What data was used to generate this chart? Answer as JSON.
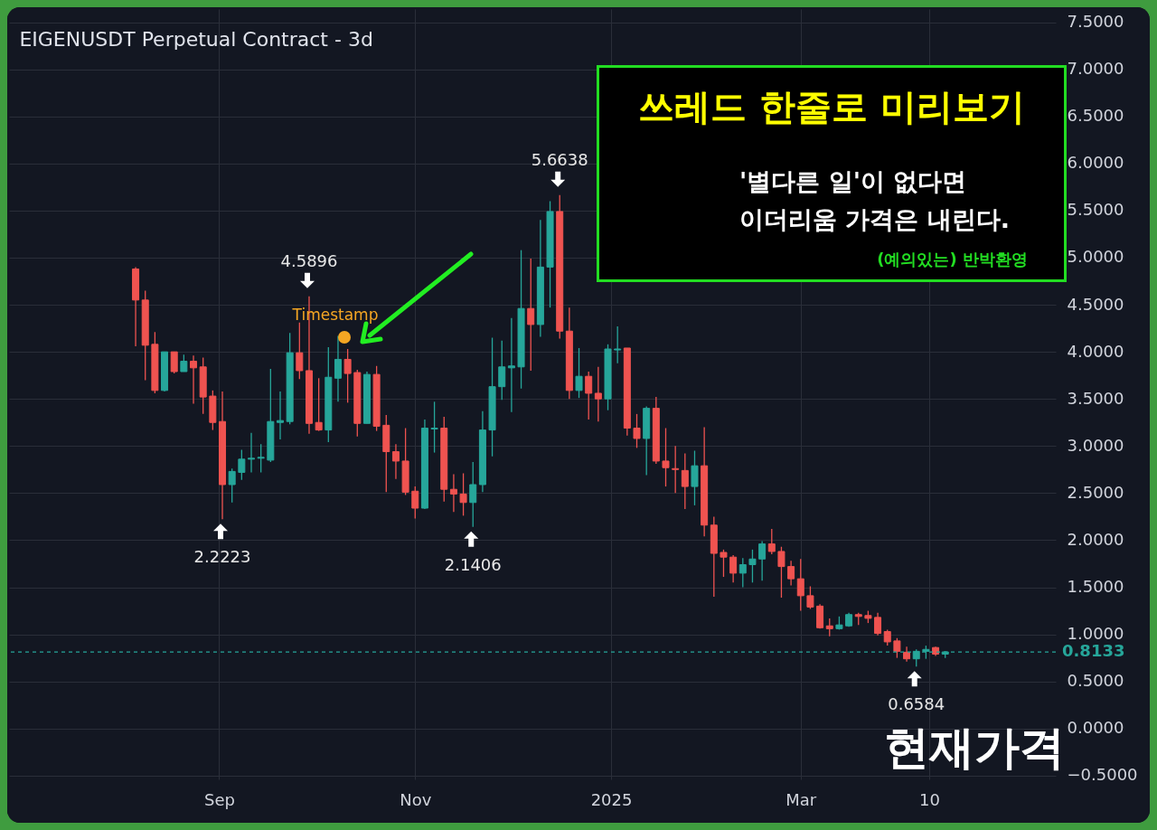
{
  "chart_data": {
    "type": "candlestick",
    "title": "EIGENUSDT Perpetual Contract - 3d",
    "x": [
      "2024-08-06",
      "2024-08-09",
      "2024-08-12",
      "2024-08-15",
      "2024-08-18",
      "2024-08-21",
      "2024-08-24",
      "2024-08-27",
      "2024-08-30",
      "2024-09-02",
      "2024-09-05",
      "2024-09-08",
      "2024-09-11",
      "2024-09-14",
      "2024-09-17",
      "2024-09-20",
      "2024-09-23",
      "2024-09-26",
      "2024-09-29",
      "2024-10-02",
      "2024-10-05",
      "2024-10-08",
      "2024-10-11",
      "2024-10-14",
      "2024-10-17",
      "2024-10-20",
      "2024-10-23",
      "2024-10-26",
      "2024-10-29",
      "2024-11-01",
      "2024-11-04",
      "2024-11-07",
      "2024-11-10",
      "2024-11-13",
      "2024-11-16",
      "2024-11-19",
      "2024-11-22",
      "2024-11-25",
      "2024-11-28",
      "2024-12-01",
      "2024-12-04",
      "2024-12-07",
      "2024-12-10",
      "2024-12-13",
      "2024-12-16",
      "2024-12-19",
      "2024-12-22",
      "2024-12-25",
      "2024-12-28",
      "2024-12-31",
      "2025-01-03",
      "2025-01-06",
      "2025-01-09",
      "2025-01-12",
      "2025-01-15",
      "2025-01-18",
      "2025-01-21",
      "2025-01-24",
      "2025-01-27",
      "2025-01-30",
      "2025-02-02",
      "2025-02-05",
      "2025-02-08",
      "2025-02-11",
      "2025-02-14",
      "2025-02-17",
      "2025-02-20",
      "2025-02-23",
      "2025-02-26",
      "2025-03-01",
      "2025-03-04",
      "2025-03-07",
      "2025-03-10",
      "2025-03-13",
      "2025-03-16",
      "2025-03-19",
      "2025-03-22",
      "2025-03-25",
      "2025-03-28",
      "2025-03-31",
      "2025-04-03",
      "2025-04-06",
      "2025-04-09",
      "2025-04-12",
      "2025-04-15"
    ],
    "ohlc": [
      [
        4.88,
        4.9,
        4.06,
        4.55
      ],
      [
        4.55,
        4.65,
        3.7,
        4.07
      ],
      [
        4.08,
        4.21,
        3.56,
        3.59
      ],
      [
        3.59,
        4.0,
        3.58,
        4.0
      ],
      [
        4.0,
        4.0,
        3.77,
        3.79
      ],
      [
        3.79,
        3.97,
        3.79,
        3.9
      ],
      [
        3.9,
        3.96,
        3.45,
        3.83
      ],
      [
        3.84,
        3.94,
        3.34,
        3.52
      ],
      [
        3.53,
        3.59,
        3.17,
        3.25
      ],
      [
        3.26,
        3.58,
        2.2223,
        2.59
      ],
      [
        2.59,
        2.76,
        2.4,
        2.73
      ],
      [
        2.72,
        2.96,
        2.64,
        2.86
      ],
      [
        2.86,
        3.14,
        2.72,
        2.87
      ],
      [
        2.87,
        3.02,
        2.72,
        2.88
      ],
      [
        2.85,
        3.82,
        2.83,
        3.26
      ],
      [
        3.25,
        3.58,
        3.07,
        3.27
      ],
      [
        3.26,
        4.2,
        3.23,
        3.99
      ],
      [
        3.99,
        4.31,
        3.71,
        3.8
      ],
      [
        3.8,
        4.5896,
        3.13,
        3.24
      ],
      [
        3.25,
        3.72,
        3.16,
        3.17
      ],
      [
        3.17,
        4.05,
        3.04,
        3.73
      ],
      [
        3.72,
        4.17,
        3.47,
        3.92
      ],
      [
        3.92,
        4.03,
        3.46,
        3.77
      ],
      [
        3.78,
        3.81,
        3.1,
        3.24
      ],
      [
        3.24,
        3.79,
        3.24,
        3.76
      ],
      [
        3.76,
        3.85,
        3.16,
        3.21
      ],
      [
        3.22,
        3.33,
        2.51,
        2.94
      ],
      [
        2.94,
        3.02,
        2.65,
        2.84
      ],
      [
        2.84,
        3.19,
        2.48,
        2.51
      ],
      [
        2.52,
        2.57,
        2.23,
        2.34
      ],
      [
        2.34,
        3.28,
        2.33,
        3.19
      ],
      [
        3.18,
        3.47,
        2.93,
        3.19
      ],
      [
        3.19,
        3.31,
        2.41,
        2.54
      ],
      [
        2.54,
        2.7,
        2.3,
        2.49
      ],
      [
        2.49,
        2.71,
        2.26,
        2.4
      ],
      [
        2.4,
        2.83,
        2.1406,
        2.59
      ],
      [
        2.59,
        3.37,
        2.51,
        3.17
      ],
      [
        3.17,
        4.15,
        2.89,
        3.63
      ],
      [
        3.63,
        4.12,
        3.49,
        3.84
      ],
      [
        3.83,
        4.36,
        3.36,
        3.85
      ],
      [
        3.84,
        5.08,
        3.61,
        4.46
      ],
      [
        4.46,
        4.99,
        3.8,
        4.29
      ],
      [
        4.29,
        5.4,
        4.16,
        4.9
      ],
      [
        4.9,
        5.6,
        4.47,
        5.49
      ],
      [
        5.49,
        5.6638,
        4.14,
        4.22
      ],
      [
        4.22,
        4.47,
        3.5,
        3.59
      ],
      [
        3.59,
        4.04,
        3.51,
        3.74
      ],
      [
        3.74,
        3.79,
        3.28,
        3.56
      ],
      [
        3.56,
        3.84,
        3.26,
        3.5
      ],
      [
        3.5,
        4.08,
        3.38,
        4.03
      ],
      [
        4.02,
        4.27,
        3.88,
        4.03
      ],
      [
        4.04,
        4.04,
        3.11,
        3.19
      ],
      [
        3.19,
        3.34,
        2.98,
        3.08
      ],
      [
        3.08,
        3.42,
        2.69,
        3.4
      ],
      [
        3.4,
        3.52,
        2.81,
        2.84
      ],
      [
        2.84,
        3.19,
        2.57,
        2.77
      ],
      [
        2.76,
        3.0,
        2.5,
        2.75
      ],
      [
        2.74,
        2.92,
        2.33,
        2.57
      ],
      [
        2.57,
        2.95,
        2.37,
        2.79
      ],
      [
        2.79,
        3.2,
        2.04,
        2.16
      ],
      [
        2.16,
        2.25,
        1.4,
        1.86
      ],
      [
        1.87,
        1.9,
        1.61,
        1.82
      ],
      [
        1.82,
        1.84,
        1.55,
        1.65
      ],
      [
        1.65,
        1.81,
        1.5,
        1.74
      ],
      [
        1.74,
        1.9,
        1.55,
        1.8
      ],
      [
        1.8,
        1.99,
        1.57,
        1.96
      ],
      [
        1.96,
        2.12,
        1.85,
        1.88
      ],
      [
        1.88,
        1.93,
        1.39,
        1.72
      ],
      [
        1.72,
        1.78,
        1.52,
        1.59
      ],
      [
        1.59,
        1.8,
        1.25,
        1.41
      ],
      [
        1.41,
        1.51,
        1.27,
        1.29
      ],
      [
        1.3,
        1.32,
        1.06,
        1.07
      ],
      [
        1.09,
        1.17,
        0.98,
        1.06
      ],
      [
        1.06,
        1.19,
        1.05,
        1.1
      ],
      [
        1.09,
        1.23,
        1.08,
        1.21
      ],
      [
        1.21,
        1.23,
        1.1,
        1.19
      ],
      [
        1.2,
        1.25,
        1.12,
        1.17
      ],
      [
        1.18,
        1.23,
        0.99,
        1.01
      ],
      [
        1.03,
        1.05,
        0.88,
        0.92
      ],
      [
        0.93,
        0.96,
        0.75,
        0.82
      ],
      [
        0.81,
        0.87,
        0.71,
        0.74
      ],
      [
        0.74,
        0.84,
        0.6584,
        0.82
      ],
      [
        0.82,
        0.88,
        0.74,
        0.84
      ],
      [
        0.86,
        0.87,
        0.77,
        0.79
      ],
      [
        0.79,
        0.82,
        0.75,
        0.8133
      ]
    ],
    "xlim": [
      "2024-06-29",
      "2025-05-18"
    ],
    "ylim": [
      -0.54,
      7.64
    ],
    "xticks": [
      {
        "value": "2024-09-01",
        "label": "Sep"
      },
      {
        "value": "2024-11-01",
        "label": "Nov"
      },
      {
        "value": "2025-01-01",
        "label": "2025"
      },
      {
        "value": "2025-03-01",
        "label": "Mar"
      },
      {
        "value": "2025-04-10",
        "label": "10"
      }
    ],
    "yticks": [
      {
        "value": -0.5,
        "label": "−0.5000"
      },
      {
        "value": 0,
        "label": "0.0000"
      },
      {
        "value": 0.5,
        "label": "0.5000"
      },
      {
        "value": 1,
        "label": "1.0000"
      },
      {
        "value": 1.5,
        "label": "1.5000"
      },
      {
        "value": 2,
        "label": "2.0000"
      },
      {
        "value": 2.5,
        "label": "2.5000"
      },
      {
        "value": 3,
        "label": "3.0000"
      },
      {
        "value": 3.5,
        "label": "3.5000"
      },
      {
        "value": 4,
        "label": "4.0000"
      },
      {
        "value": 4.5,
        "label": "4.5000"
      },
      {
        "value": 5,
        "label": "5.0000"
      },
      {
        "value": 5.5,
        "label": "5.5000"
      },
      {
        "value": 6,
        "label": "6.0000"
      },
      {
        "value": 6.5,
        "label": "6.5000"
      },
      {
        "value": 7,
        "label": "7.0000"
      },
      {
        "value": 7.5,
        "label": "7.5000"
      }
    ],
    "grid": true,
    "ref_lines": [
      {
        "axis": "y",
        "value": 0.8133,
        "label": "0.8133",
        "color": "#26a69a",
        "line_style": "dashed"
      }
    ],
    "annotations": [
      "쓰레드 한줄로 미리보기",
      "'별다른 일'이 없다면",
      "이더리움 가격은 내린다.",
      "(예의있는) 반박환영",
      "현재가격",
      {
        "text": "2.2223",
        "x": "2024-09-02",
        "y": 2.2223
      },
      {
        "text": "4.5896",
        "x": "2024-09-29",
        "y": 4.5896
      },
      {
        "text": "2.1406",
        "x": "2024-11-19",
        "y": 2.1406
      },
      {
        "text": "5.6638",
        "x": "2024-12-16",
        "y": 5.6638
      },
      {
        "text": "0.6584",
        "x": "2025-04-06",
        "y": 0.6584
      },
      "Timestamp"
    ]
  }
}
